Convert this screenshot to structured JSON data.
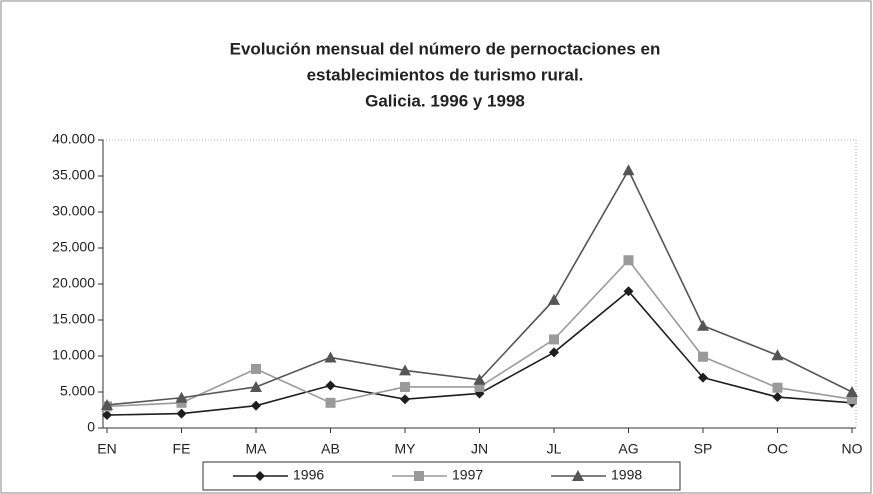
{
  "chart_data": {
    "type": "line",
    "title": [
      "Evolución mensual del número de pernoctaciones en",
      "establecimientos de turismo rural.",
      "Galicia. 1996 y 1998"
    ],
    "categories": [
      "EN",
      "FE",
      "MA",
      "AB",
      "MY",
      "JN",
      "JL",
      "AG",
      "SP",
      "OC",
      "NO"
    ],
    "series": [
      {
        "name": "1996",
        "color": "#1e1e1e",
        "marker": "diamond",
        "values": [
          1800,
          2000,
          3100,
          5900,
          4000,
          4800,
          10500,
          19000,
          7000,
          4300,
          3500
        ]
      },
      {
        "name": "1997",
        "color": "#9a9a9a",
        "marker": "square",
        "values": [
          3000,
          3500,
          8200,
          3500,
          5700,
          5700,
          12300,
          23300,
          9900,
          5600,
          4000
        ]
      },
      {
        "name": "1998",
        "color": "#555555",
        "marker": "triangle",
        "values": [
          3200,
          4200,
          5700,
          9800,
          8000,
          6700,
          17800,
          35800,
          14200,
          10100,
          5000
        ]
      }
    ],
    "ylim": [
      0,
      40000
    ],
    "yticks": [
      0,
      {
        "value": 5000,
        "label": "5.000"
      },
      {
        "value": 10000,
        "label": "10.000"
      },
      {
        "value": 15000,
        "label": "15.000"
      },
      {
        "value": 20000,
        "label": "20.000"
      },
      {
        "value": 25000,
        "label": "25.000"
      },
      {
        "value": 30000,
        "label": "30.000"
      },
      {
        "value": 35000,
        "label": "35.000"
      },
      {
        "value": 40000,
        "label": "40.000"
      }
    ],
    "grid": false,
    "legend": "bottom"
  }
}
